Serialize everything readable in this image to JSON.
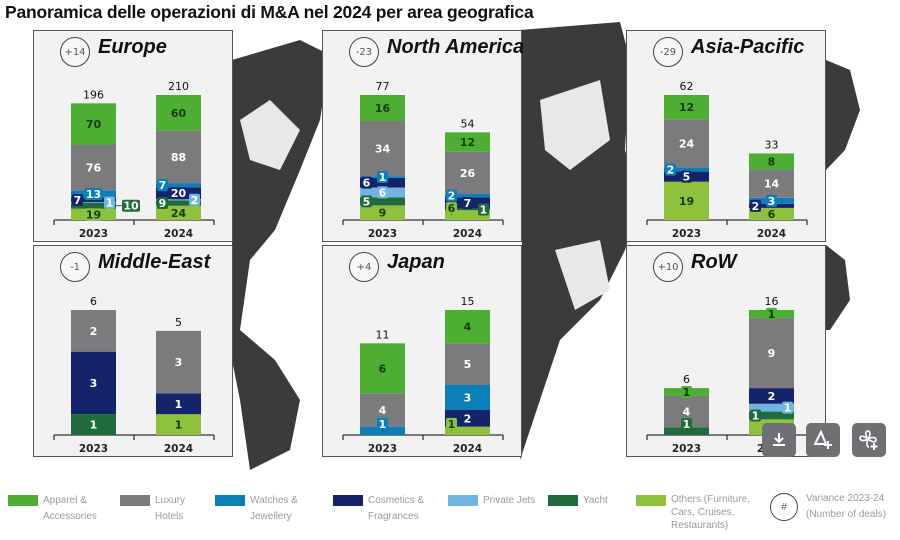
{
  "title": "Panoramica delle operazioni di M&A nel 2024 per area geografica",
  "colors": {
    "apparel": "#4caf32",
    "hotels": "#7b7b7d",
    "watches": "#0b7fb8",
    "cosmetics": "#13246b",
    "jets": "#72b4e2",
    "yacht": "#1f6b3b",
    "others": "#8ec23c"
  },
  "legend": {
    "items": [
      {
        "key": "apparel",
        "label": "Apparel & Accessories"
      },
      {
        "key": "hotels",
        "label": "Luxury Hotels"
      },
      {
        "key": "watches",
        "label": "Watches & Jewellery"
      },
      {
        "key": "cosmetics",
        "label": "Cosmetics & Fragrances"
      },
      {
        "key": "jets",
        "label": "Private Jets"
      },
      {
        "key": "yacht",
        "label": "Yacht"
      },
      {
        "key": "others",
        "label": "Others (Furniture, Cars, Cruises, Restaurants)"
      }
    ],
    "variance_symbol": "#",
    "variance_label": "Variance 2023-24 (Number of deals)"
  },
  "toolbar": {
    "icons": [
      "download-icon",
      "add-shape-icon",
      "add-fan-icon"
    ]
  },
  "chart_data": [
    {
      "type": "bar",
      "stacked": true,
      "title": "Europe",
      "variance": "+14",
      "categories": [
        "2023",
        "2024"
      ],
      "totals": [
        196,
        210
      ],
      "series": [
        {
          "name": "Others (Furniture, Cars, Cruises, Restaurants)",
          "key": "others",
          "values": [
            19,
            24
          ]
        },
        {
          "name": "Yacht",
          "key": "yacht",
          "values": [
            10,
            9
          ]
        },
        {
          "name": "Private Jets",
          "key": "jets",
          "values": [
            1,
            2
          ]
        },
        {
          "name": "Cosmetics & Fragrances",
          "key": "cosmetics",
          "values": [
            7,
            20
          ]
        },
        {
          "name": "Watches & Jewellery",
          "key": "watches",
          "values": [
            13,
            7
          ]
        },
        {
          "name": "Luxury Hotels",
          "key": "hotels",
          "values": [
            76,
            88
          ]
        },
        {
          "name": "Apparel & Accessories",
          "key": "apparel",
          "values": [
            70,
            60
          ]
        }
      ]
    },
    {
      "type": "bar",
      "stacked": true,
      "title": "North America",
      "variance": "-23",
      "categories": [
        "2023",
        "2024"
      ],
      "totals": [
        77,
        54
      ],
      "series": [
        {
          "name": "Others (Furniture, Cars, Cruises, Restaurants)",
          "key": "others",
          "values": [
            9,
            6
          ]
        },
        {
          "name": "Yacht",
          "key": "yacht",
          "values": [
            5,
            1
          ]
        },
        {
          "name": "Private Jets",
          "key": "jets",
          "values": [
            6,
            0
          ]
        },
        {
          "name": "Cosmetics & Fragrances",
          "key": "cosmetics",
          "values": [
            6,
            7
          ]
        },
        {
          "name": "Watches & Jewellery",
          "key": "watches",
          "values": [
            1,
            2
          ]
        },
        {
          "name": "Luxury Hotels",
          "key": "hotels",
          "values": [
            34,
            26
          ]
        },
        {
          "name": "Apparel & Accessories",
          "key": "apparel",
          "values": [
            16,
            12
          ]
        }
      ]
    },
    {
      "type": "bar",
      "stacked": true,
      "title": "Asia-Pacific",
      "variance": "-29",
      "categories": [
        "2023",
        "2024"
      ],
      "totals": [
        62,
        33
      ],
      "series": [
        {
          "name": "Others (Furniture, Cars, Cruises, Restaurants)",
          "key": "others",
          "values": [
            19,
            6
          ]
        },
        {
          "name": "Yacht",
          "key": "yacht",
          "values": [
            0,
            0
          ]
        },
        {
          "name": "Private Jets",
          "key": "jets",
          "values": [
            0,
            0
          ]
        },
        {
          "name": "Cosmetics & Fragrances",
          "key": "cosmetics",
          "values": [
            5,
            2
          ]
        },
        {
          "name": "Watches & Jewellery",
          "key": "watches",
          "values": [
            2,
            3
          ]
        },
        {
          "name": "Luxury Hotels",
          "key": "hotels",
          "values": [
            24,
            14
          ]
        },
        {
          "name": "Apparel & Accessories",
          "key": "apparel",
          "values": [
            12,
            8
          ]
        }
      ]
    },
    {
      "type": "bar",
      "stacked": true,
      "title": "Middle-East",
      "variance": "-1",
      "categories": [
        "2023",
        "2024"
      ],
      "totals": [
        6,
        5
      ],
      "series": [
        {
          "name": "Others (Furniture, Cars, Cruises, Restaurants)",
          "key": "others",
          "values": [
            0,
            1
          ]
        },
        {
          "name": "Yacht",
          "key": "yacht",
          "values": [
            1,
            0
          ]
        },
        {
          "name": "Private Jets",
          "key": "jets",
          "values": [
            0,
            0
          ]
        },
        {
          "name": "Cosmetics & Fragrances",
          "key": "cosmetics",
          "values": [
            3,
            1
          ]
        },
        {
          "name": "Watches & Jewellery",
          "key": "watches",
          "values": [
            0,
            0
          ]
        },
        {
          "name": "Luxury Hotels",
          "key": "hotels",
          "values": [
            2,
            3
          ]
        },
        {
          "name": "Apparel & Accessories",
          "key": "apparel",
          "values": [
            0,
            0
          ]
        }
      ]
    },
    {
      "type": "bar",
      "stacked": true,
      "title": "Japan",
      "variance": "+4",
      "categories": [
        "2023",
        "2024"
      ],
      "totals": [
        11,
        15
      ],
      "series": [
        {
          "name": "Others (Furniture, Cars, Cruises, Restaurants)",
          "key": "others",
          "values": [
            0,
            1
          ]
        },
        {
          "name": "Yacht",
          "key": "yacht",
          "values": [
            0,
            0
          ]
        },
        {
          "name": "Private Jets",
          "key": "jets",
          "values": [
            0,
            0
          ]
        },
        {
          "name": "Cosmetics & Fragrances",
          "key": "cosmetics",
          "values": [
            0,
            2
          ]
        },
        {
          "name": "Watches & Jewellery",
          "key": "watches",
          "values": [
            1,
            3
          ]
        },
        {
          "name": "Luxury Hotels",
          "key": "hotels",
          "values": [
            4,
            5
          ]
        },
        {
          "name": "Apparel & Accessories",
          "key": "apparel",
          "values": [
            6,
            4
          ]
        }
      ]
    },
    {
      "type": "bar",
      "stacked": true,
      "title": "RoW",
      "variance": "+10",
      "categories": [
        "2023",
        "2024"
      ],
      "totals": [
        6,
        16
      ],
      "series": [
        {
          "name": "Others (Furniture, Cars, Cruises, Restaurants)",
          "key": "others",
          "values": [
            0,
            2
          ]
        },
        {
          "name": "Yacht",
          "key": "yacht",
          "values": [
            1,
            1
          ]
        },
        {
          "name": "Private Jets",
          "key": "jets",
          "values": [
            0,
            1
          ]
        },
        {
          "name": "Cosmetics & Fragrances",
          "key": "cosmetics",
          "values": [
            0,
            2
          ]
        },
        {
          "name": "Watches & Jewellery",
          "key": "watches",
          "values": [
            0,
            0
          ]
        },
        {
          "name": "Luxury Hotels",
          "key": "hotels",
          "values": [
            4,
            9
          ]
        },
        {
          "name": "Apparel & Accessories",
          "key": "apparel",
          "values": [
            1,
            1
          ]
        }
      ]
    }
  ]
}
